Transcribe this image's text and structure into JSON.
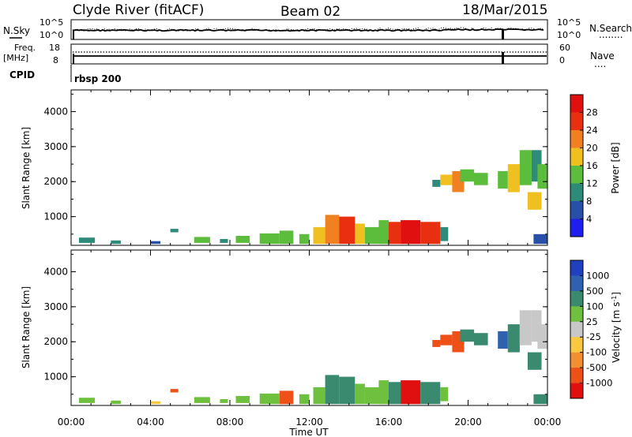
{
  "header": {
    "station": "Clyde River (fitACF)",
    "beam": "Beam 02",
    "date": "18/Mar/2015"
  },
  "sky_panel": {
    "left_label": "N.Sky",
    "left_top": "10^5",
    "left_bottom": "10^0",
    "right_top": "10^5",
    "right_bottom": "10^0",
    "right_label": "N.Search",
    "right_dots": "........"
  },
  "freq_panel": {
    "left_label": "Freq.",
    "left_unit": "[MHz]",
    "left_top": "18",
    "left_bottom": "8",
    "right_top": "60",
    "right_bottom": "0",
    "right_label": "Nave",
    "right_dots": "...."
  },
  "cpid": {
    "label": "CPID",
    "value": "rbsp 200"
  },
  "colors": {
    "power": [
      "#1e1ef0",
      "#2850a8",
      "#2e8b7a",
      "#5cbd3c",
      "#f0c020",
      "#f08020",
      "#e83010",
      "#e01010"
    ],
    "velocity": [
      "#e01010",
      "#ee5018",
      "#f09030",
      "#f8c840",
      "#c8c8c8",
      "#70c040",
      "#3a8a70",
      "#3060b0",
      "#2040c0"
    ]
  },
  "chart_data": [
    {
      "type": "heatmap",
      "title": "",
      "xlabel": "Time UT",
      "ylabel": "Slant Range [km]",
      "x_ticks": [
        "00:00",
        "04:00",
        "08:00",
        "12:00",
        "16:00",
        "20:00",
        "00:00"
      ],
      "y_ticks": [
        "1000",
        "2000",
        "3000",
        "4000"
      ],
      "xlim": [
        0,
        24
      ],
      "ylim": [
        180,
        4620
      ],
      "colorbar_label": "Power [dB]",
      "colorbar_ticks": [
        "4",
        "8",
        "12",
        "16",
        "20",
        "24",
        "28"
      ],
      "colorbar_range": [
        0,
        32
      ],
      "series": [
        {
          "values": [
            [
              0.4,
              1.2,
              250,
              400,
              10
            ],
            [
              2.0,
              2.5,
              220,
              320,
              8
            ],
            [
              4.0,
              4.5,
              220,
              300,
              6
            ],
            [
              5.0,
              5.4,
              550,
              650,
              8
            ],
            [
              6.2,
              7.0,
              250,
              420,
              14
            ],
            [
              7.5,
              7.9,
              250,
              360,
              10
            ],
            [
              8.3,
              9.0,
              250,
              450,
              13
            ],
            [
              9.5,
              10.5,
              220,
              520,
              12
            ],
            [
              10.5,
              11.2,
              220,
              600,
              14
            ],
            [
              11.5,
              12.0,
              220,
              500,
              12
            ],
            [
              12.2,
              12.8,
              220,
              700,
              16
            ],
            [
              12.8,
              13.5,
              220,
              1050,
              22
            ],
            [
              13.5,
              14.3,
              220,
              1000,
              26
            ],
            [
              14.3,
              14.8,
              220,
              800,
              18
            ],
            [
              14.8,
              15.5,
              220,
              700,
              14
            ],
            [
              15.5,
              16.0,
              220,
              900,
              14
            ],
            [
              16.0,
              16.6,
              220,
              850,
              26
            ],
            [
              16.6,
              17.6,
              220,
              900,
              30
            ],
            [
              17.6,
              18.6,
              220,
              850,
              24
            ],
            [
              18.6,
              19.0,
              300,
              700,
              10
            ],
            [
              18.2,
              18.6,
              1850,
              2050,
              10
            ],
            [
              18.6,
              19.2,
              1900,
              2200,
              18
            ],
            [
              19.2,
              19.8,
              1700,
              2300,
              22
            ],
            [
              19.6,
              20.3,
              2000,
              2350,
              14
            ],
            [
              20.3,
              21.0,
              1900,
              2250,
              12
            ],
            [
              21.5,
              22.0,
              1800,
              2300,
              12
            ],
            [
              22.0,
              22.6,
              1700,
              2500,
              16
            ],
            [
              22.6,
              23.2,
              1900,
              2900,
              12
            ],
            [
              23.0,
              23.7,
              1200,
              1700,
              18
            ],
            [
              23.2,
              23.7,
              2000,
              2900,
              10
            ],
            [
              23.5,
              24.0,
              1800,
              2500,
              12
            ],
            [
              23.3,
              24.0,
              220,
              500,
              6
            ]
          ]
        }
      ]
    },
    {
      "type": "heatmap",
      "title": "",
      "xlabel": "Time UT",
      "ylabel": "Slant Range [km]",
      "x_ticks": [
        "00:00",
        "04:00",
        "08:00",
        "12:00",
        "16:00",
        "20:00",
        "00:00"
      ],
      "y_ticks": [
        "1000",
        "2000",
        "3000",
        "4000"
      ],
      "xlim": [
        0,
        24
      ],
      "ylim": [
        180,
        4620
      ],
      "colorbar_label": "Velocity [m s^-1]",
      "colorbar_ticks": [
        "1000",
        "500",
        "100",
        "25",
        "-25",
        "-100",
        "-500",
        "-1000"
      ],
      "colorbar_range": [
        -1200,
        1200
      ],
      "series": [
        {
          "values": [
            [
              0.4,
              1.2,
              250,
              400,
              60
            ],
            [
              2.0,
              2.5,
              220,
              320,
              60
            ],
            [
              4.0,
              4.5,
              220,
              300,
              -10
            ],
            [
              5.0,
              5.4,
              550,
              650,
              -150
            ],
            [
              6.2,
              7.0,
              250,
              420,
              60
            ],
            [
              7.5,
              7.9,
              250,
              360,
              60
            ],
            [
              8.3,
              9.0,
              250,
              450,
              60
            ],
            [
              9.5,
              10.5,
              220,
              520,
              60
            ],
            [
              10.5,
              11.2,
              220,
              600,
              -150
            ],
            [
              11.5,
              12.0,
              220,
              500,
              60
            ],
            [
              12.2,
              12.8,
              220,
              700,
              60
            ],
            [
              12.8,
              13.5,
              220,
              1050,
              300
            ],
            [
              13.5,
              14.3,
              220,
              1000,
              300
            ],
            [
              14.3,
              14.8,
              220,
              800,
              60
            ],
            [
              14.8,
              15.5,
              220,
              700,
              60
            ],
            [
              15.5,
              16.0,
              220,
              900,
              60
            ],
            [
              16.0,
              16.6,
              220,
              850,
              300
            ],
            [
              16.6,
              17.6,
              220,
              900,
              -700
            ],
            [
              17.6,
              18.6,
              220,
              850,
              300
            ],
            [
              18.6,
              19.0,
              300,
              700,
              60
            ],
            [
              18.2,
              18.6,
              1850,
              2050,
              -150
            ],
            [
              18.6,
              19.2,
              1900,
              2200,
              -300
            ],
            [
              19.2,
              19.8,
              1700,
              2300,
              -300
            ],
            [
              19.6,
              20.3,
              2000,
              2350,
              300
            ],
            [
              20.3,
              21.0,
              1900,
              2250,
              300
            ],
            [
              21.5,
              22.0,
              1800,
              2300,
              600
            ],
            [
              22.0,
              22.6,
              1700,
              2500,
              300
            ],
            [
              22.6,
              23.2,
              1900,
              2900,
              0
            ],
            [
              23.0,
              23.7,
              1200,
              1700,
              300
            ],
            [
              23.2,
              23.7,
              2000,
              2900,
              0
            ],
            [
              23.5,
              24.0,
              1800,
              2500,
              0
            ],
            [
              23.3,
              24.0,
              220,
              500,
              300
            ]
          ]
        }
      ]
    }
  ]
}
